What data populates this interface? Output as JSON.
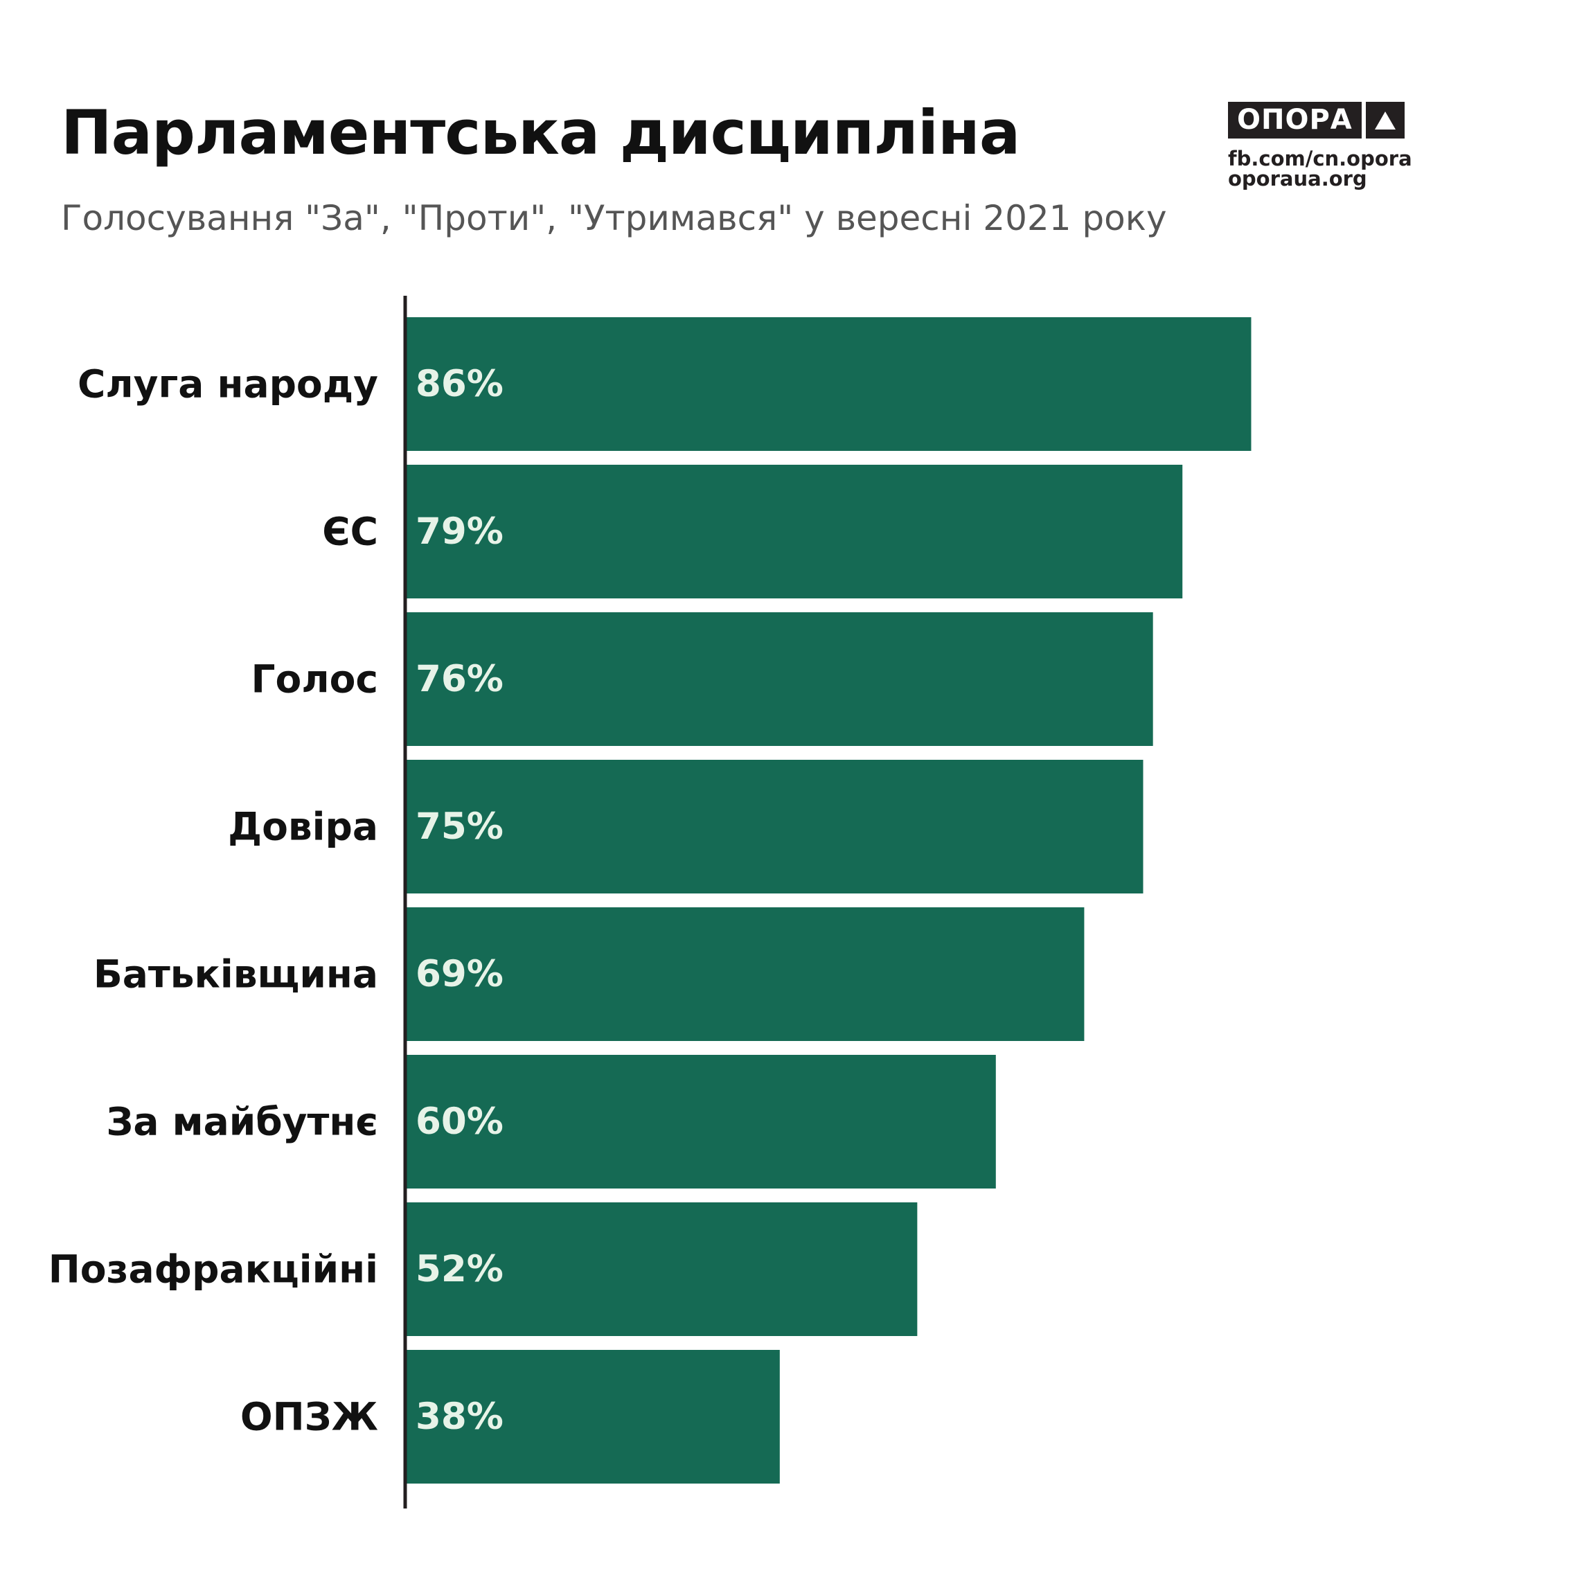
{
  "header": {
    "title": "Парламентська дисципліна",
    "subtitle": "Голосування \"За\", \"Проти\", \"Утримався\" у вересні 2021 року"
  },
  "logo": {
    "word": "ОПОРА",
    "link1": "fb.com/cn.opora",
    "link2": "oporaua.org"
  },
  "colors": {
    "bar": "#156a54",
    "bar_label": "#e7f3e8",
    "axis": "#231f20",
    "category_label": "#111111"
  },
  "chart_data": {
    "type": "bar",
    "orientation": "horizontal",
    "categories": [
      "Слуга народу",
      "ЄС",
      "Голос",
      "Довіра",
      "Батьківщина",
      "За майбутнє",
      "Позафракційні",
      "ОПЗЖ"
    ],
    "values": [
      86,
      79,
      76,
      75,
      69,
      60,
      52,
      38
    ],
    "value_labels": [
      "86%",
      "79%",
      "76%",
      "75%",
      "69%",
      "60%",
      "52%",
      "38%"
    ],
    "xlim": [
      0,
      100
    ],
    "grid": false,
    "legend": "none"
  }
}
